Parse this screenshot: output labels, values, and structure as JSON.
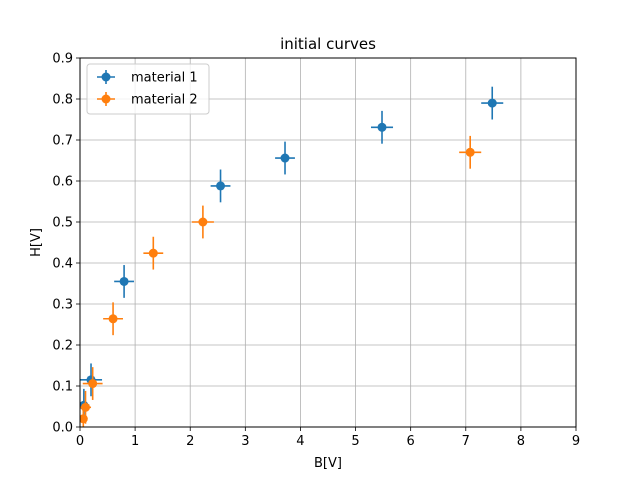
{
  "chart_data": {
    "type": "scatter",
    "title": "initial curves",
    "xlabel": "B[V]",
    "ylabel": "H[V]",
    "xlim": [
      0,
      9
    ],
    "ylim": [
      0,
      0.9
    ],
    "xticks": [
      0,
      1,
      2,
      3,
      4,
      5,
      6,
      7,
      8,
      9
    ],
    "yticks": [
      0.0,
      0.1,
      0.2,
      0.3,
      0.4,
      0.5,
      0.6,
      0.7,
      0.8,
      0.9
    ],
    "xtick_labels": [
      "0",
      "1",
      "2",
      "3",
      "4",
      "5",
      "6",
      "7",
      "8",
      "9"
    ],
    "ytick_labels": [
      "0.0",
      "0.1",
      "0.2",
      "0.3",
      "0.4",
      "0.5",
      "0.6",
      "0.7",
      "0.8",
      "0.9"
    ],
    "grid": true,
    "legend_position": "upper-left",
    "error_bars": true,
    "series": [
      {
        "name": "material 1",
        "color": "#1f77b4",
        "x": [
          0.07,
          0.2,
          0.8,
          2.55,
          3.72,
          5.48,
          7.48
        ],
        "y": [
          0.053,
          0.115,
          0.355,
          0.588,
          0.656,
          0.731,
          0.79
        ],
        "xerr": [
          0.1,
          0.2,
          0.18,
          0.18,
          0.18,
          0.2,
          0.2
        ],
        "yerr": [
          0.04,
          0.04,
          0.04,
          0.04,
          0.04,
          0.04,
          0.04
        ]
      },
      {
        "name": "material 2",
        "color": "#ff7f0e",
        "x": [
          0.06,
          0.1,
          0.23,
          0.6,
          1.33,
          2.23,
          7.08
        ],
        "y": [
          0.02,
          0.048,
          0.106,
          0.264,
          0.424,
          0.5,
          0.67
        ],
        "xerr": [
          0.05,
          0.1,
          0.18,
          0.18,
          0.18,
          0.2,
          0.2
        ],
        "yerr": [
          0.03,
          0.04,
          0.04,
          0.04,
          0.04,
          0.04,
          0.04
        ]
      }
    ]
  }
}
